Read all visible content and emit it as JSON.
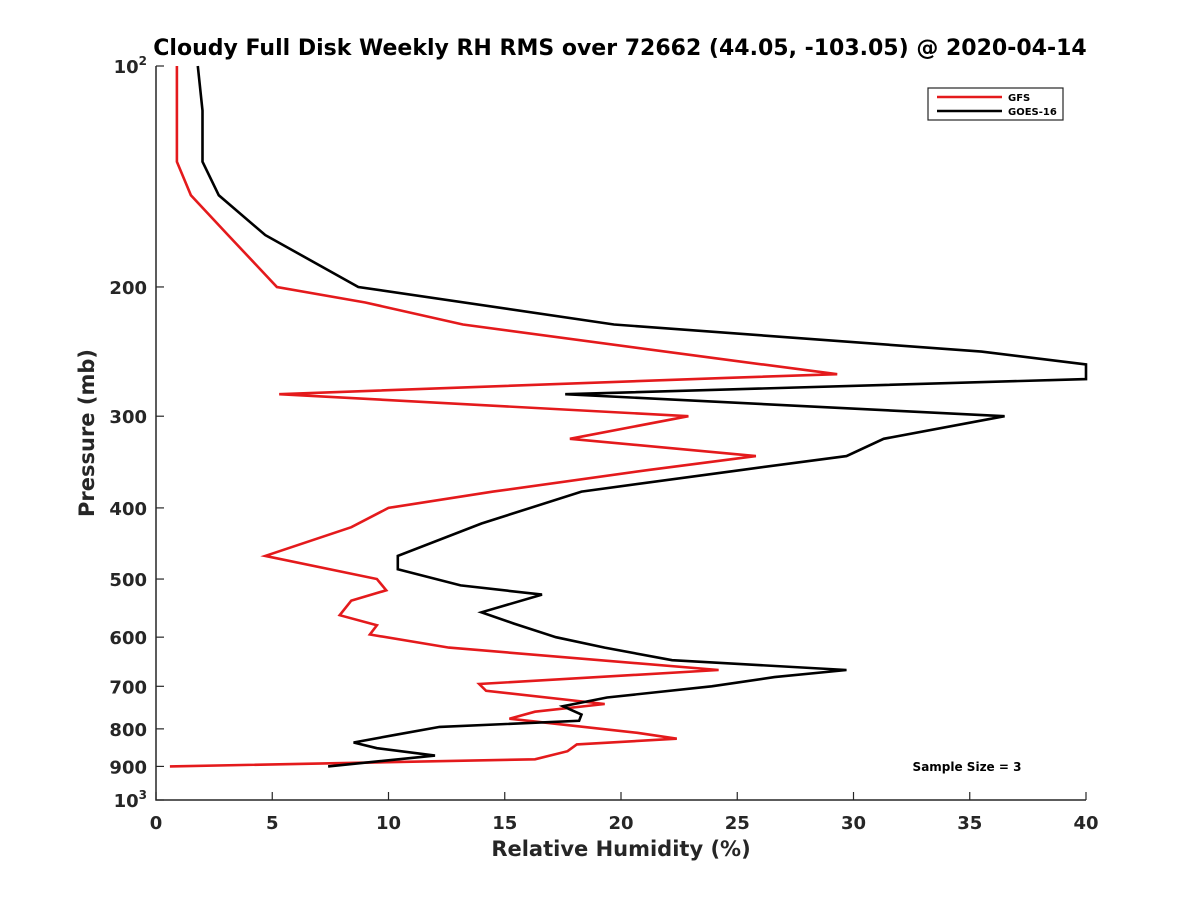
{
  "chart_data": {
    "type": "line",
    "title": "Cloudy Full Disk Weekly RH RMS over 72662 (44.05, -103.05) @ 2020-04-14",
    "xlabel": "Relative Humidity (%)",
    "ylabel": "Pressure (mb)",
    "xlim": [
      0,
      40
    ],
    "ylim": [
      100,
      1000
    ],
    "yscale": "log",
    "yreverse": true,
    "grid": false,
    "legend_position": "top-right",
    "x_ticks": [
      "0",
      "5",
      "10",
      "15",
      "20",
      "25",
      "30",
      "35",
      "40"
    ],
    "y_ticks": [
      {
        "value": 100,
        "base": "10",
        "exp": "2"
      },
      {
        "value": 200,
        "label": "200"
      },
      {
        "value": 300,
        "label": "300"
      },
      {
        "value": 400,
        "label": "400"
      },
      {
        "value": 500,
        "label": "500"
      },
      {
        "value": 600,
        "label": "600"
      },
      {
        "value": 700,
        "label": "700"
      },
      {
        "value": 800,
        "label": "800"
      },
      {
        "value": 900,
        "label": "900"
      },
      {
        "value": 1000,
        "base": "10",
        "exp": "3"
      }
    ],
    "series": [
      {
        "name": "GFS",
        "color": "#e41a1c",
        "points": [
          [
            0.9,
            100
          ],
          [
            0.9,
            115
          ],
          [
            0.9,
            135
          ],
          [
            1.5,
            150
          ],
          [
            3.1,
            170
          ],
          [
            5.2,
            200
          ],
          [
            9.0,
            210
          ],
          [
            13.2,
            225
          ],
          [
            24.0,
            250
          ],
          [
            29.3,
            263
          ],
          [
            24.5,
            266
          ],
          [
            5.3,
            280
          ],
          [
            22.9,
            300
          ],
          [
            17.8,
            322
          ],
          [
            25.8,
            340
          ],
          [
            21.2,
            355
          ],
          [
            14.5,
            380
          ],
          [
            10.0,
            400
          ],
          [
            8.4,
            425
          ],
          [
            4.7,
            465
          ],
          [
            9.5,
            500
          ],
          [
            9.9,
            518
          ],
          [
            8.4,
            535
          ],
          [
            7.9,
            560
          ],
          [
            9.5,
            578
          ],
          [
            9.2,
            595
          ],
          [
            12.6,
            620
          ],
          [
            24.2,
            665
          ],
          [
            13.9,
            695
          ],
          [
            14.2,
            710
          ],
          [
            19.3,
            740
          ],
          [
            16.3,
            758
          ],
          [
            15.2,
            775
          ],
          [
            20.7,
            810
          ],
          [
            22.4,
            825
          ],
          [
            18.1,
            840
          ],
          [
            17.7,
            858
          ],
          [
            16.3,
            880
          ],
          [
            0.6,
            900
          ]
        ]
      },
      {
        "name": "GOES-16",
        "color": "#000000",
        "points": [
          [
            1.8,
            100
          ],
          [
            2.0,
            115
          ],
          [
            2.0,
            135
          ],
          [
            2.7,
            150
          ],
          [
            4.7,
            170
          ],
          [
            8.7,
            200
          ],
          [
            19.7,
            225
          ],
          [
            35.5,
            245
          ],
          [
            40.0,
            255
          ],
          [
            40.0,
            267
          ],
          [
            17.6,
            280
          ],
          [
            36.5,
            300
          ],
          [
            31.3,
            322
          ],
          [
            29.7,
            340
          ],
          [
            25.2,
            355
          ],
          [
            18.3,
            380
          ],
          [
            14.0,
            420
          ],
          [
            10.4,
            465
          ],
          [
            10.4,
            485
          ],
          [
            13.1,
            510
          ],
          [
            16.6,
            525
          ],
          [
            14.0,
            555
          ],
          [
            15.4,
            575
          ],
          [
            17.2,
            600
          ],
          [
            19.3,
            620
          ],
          [
            22.2,
            645
          ],
          [
            29.7,
            665
          ],
          [
            26.6,
            680
          ],
          [
            23.9,
            700
          ],
          [
            19.4,
            725
          ],
          [
            17.5,
            745
          ],
          [
            18.3,
            765
          ],
          [
            18.2,
            780
          ],
          [
            12.2,
            795
          ],
          [
            10.3,
            815
          ],
          [
            8.5,
            835
          ],
          [
            9.5,
            850
          ],
          [
            12.0,
            870
          ],
          [
            7.4,
            900
          ]
        ]
      }
    ],
    "annotations": [
      "Sample Size = 3"
    ]
  }
}
